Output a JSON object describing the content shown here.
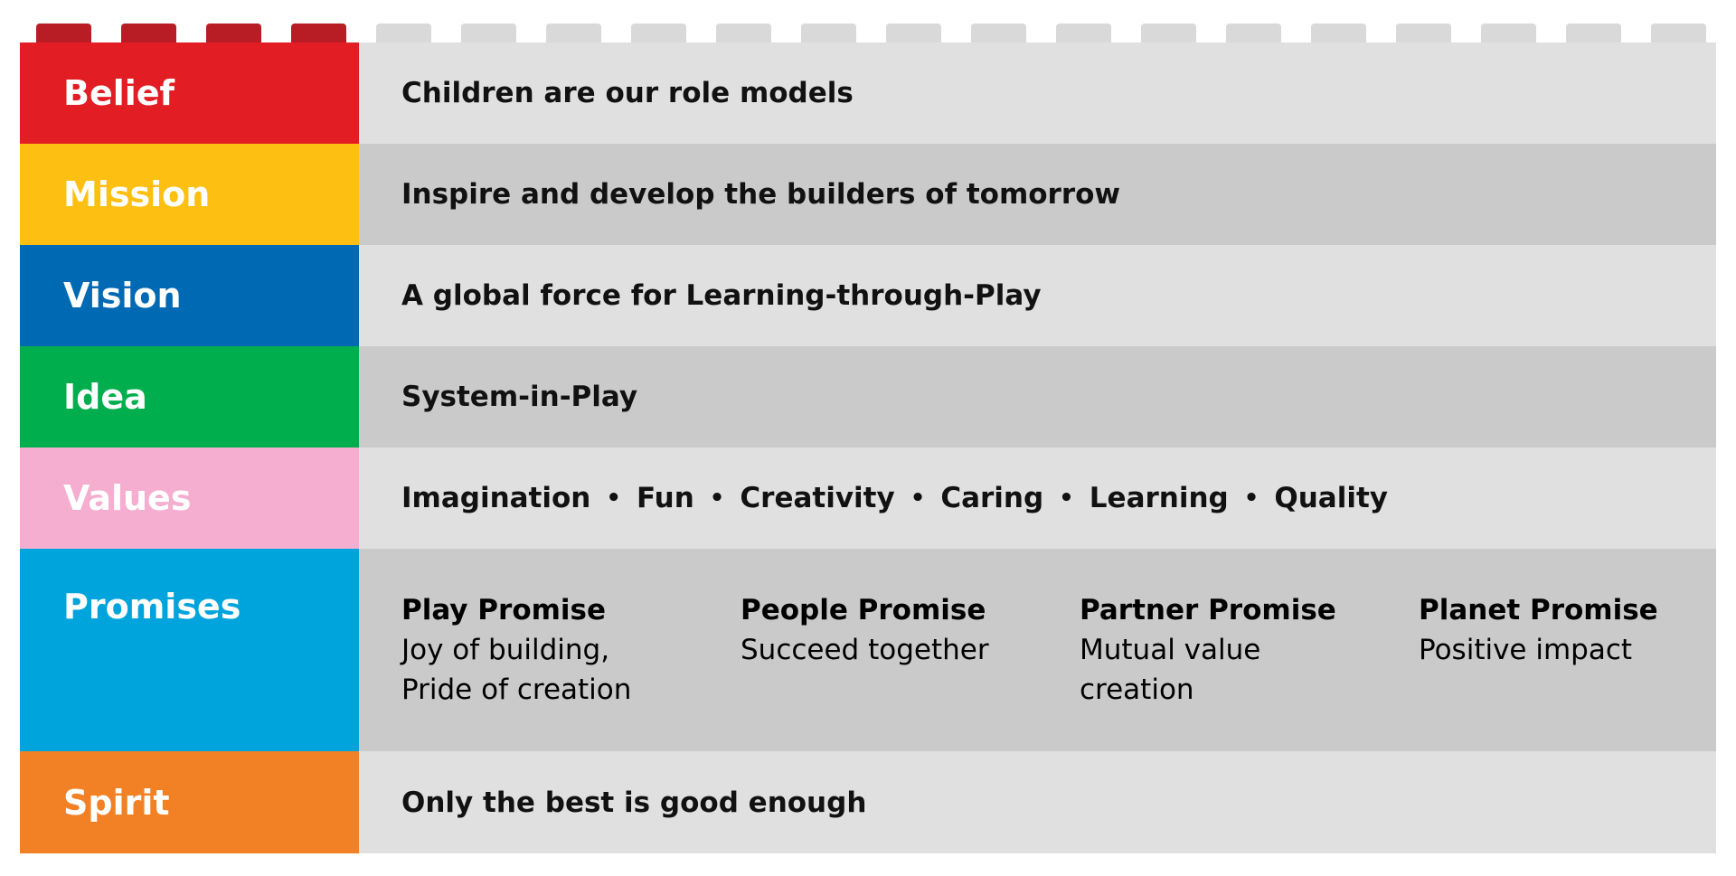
{
  "colors": {
    "red": "#e31d24",
    "yellow": "#fdc012",
    "blue": "#0069b4",
    "green": "#00ae4d",
    "pink": "#f5aecf",
    "cyan": "#00a4dc",
    "orange": "#f18124",
    "light_gray": "#e0e0e0",
    "mid_gray": "#cacaca",
    "stud_red": "#b81d25",
    "stud_gray": "#d9d9d9"
  },
  "rows": [
    {
      "label": "Belief",
      "text": "Children are our role models"
    },
    {
      "label": "Mission",
      "text": "Inspire and develop the builders of tomorrow"
    },
    {
      "label": "Vision",
      "text": "A global force for Learning-through-Play"
    },
    {
      "label": "Idea",
      "text": "System-in-Play"
    },
    {
      "label": "Values",
      "items": [
        "Imagination",
        "Fun",
        "Creativity",
        "Caring",
        "Learning",
        "Quality"
      ],
      "separator": "•"
    },
    {
      "label": "Promises",
      "items": [
        {
          "title": "Play Promise",
          "text": "Joy of building,\nPride of creation"
        },
        {
          "title": "People Promise",
          "text": "Succeed together"
        },
        {
          "title": "Partner Promise",
          "text": "Mutual value\ncreation"
        },
        {
          "title": "Planet Promise",
          "text": "Positive impact"
        }
      ]
    },
    {
      "label": "Spirit",
      "text": "Only the best is good enough"
    }
  ]
}
